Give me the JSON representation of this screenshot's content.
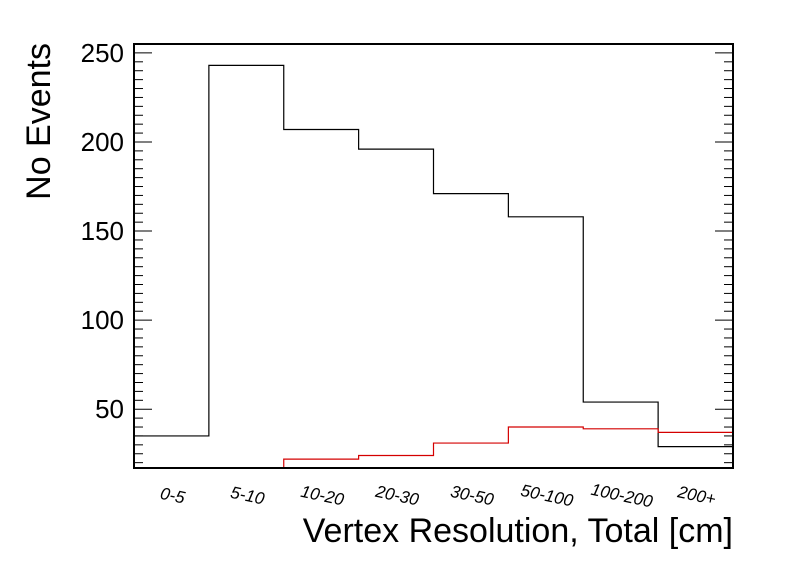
{
  "chart_data": {
    "type": "bar",
    "title": "",
    "xlabel": "Vertex Resolution, Total [cm]",
    "ylabel": "No Events",
    "categories": [
      "0-5",
      "5-10",
      "10-20",
      "20-30",
      "30-50",
      "50-100",
      "100-200",
      "200+"
    ],
    "ylim": [
      17,
      255
    ],
    "yticks": [
      50,
      100,
      150,
      200,
      250
    ],
    "ytick_labels": [
      "50",
      "100",
      "150",
      "200",
      "250"
    ],
    "grid": false,
    "legend": "none",
    "series": [
      {
        "color": "#000000",
        "values": [
          35,
          243,
          207,
          196,
          171,
          158,
          54,
          29
        ]
      },
      {
        "color": "#d40000",
        "values": [
          17,
          17,
          22,
          24,
          31,
          40,
          39,
          37
        ]
      }
    ]
  }
}
